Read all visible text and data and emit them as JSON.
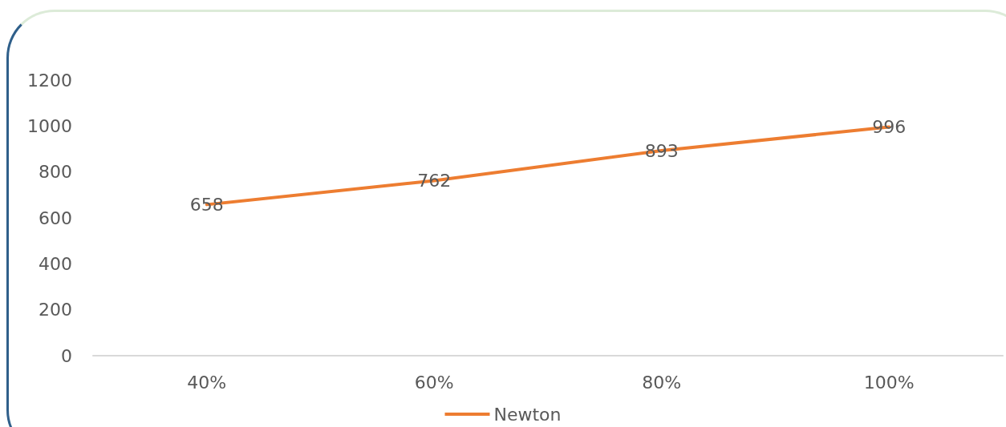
{
  "chart_data": {
    "type": "line",
    "categories": [
      "40%",
      "60%",
      "80%",
      "100%"
    ],
    "series": [
      {
        "name": "Newton",
        "color": "#ed7d31",
        "values": [
          658,
          762,
          893,
          996
        ]
      }
    ],
    "ylim": [
      0,
      1200
    ],
    "yticks": [
      0,
      200,
      400,
      600,
      800,
      1000,
      1200
    ],
    "grid": false,
    "legend": "bottom",
    "marker": "none",
    "line_style": "solid",
    "data_labels": true
  }
}
